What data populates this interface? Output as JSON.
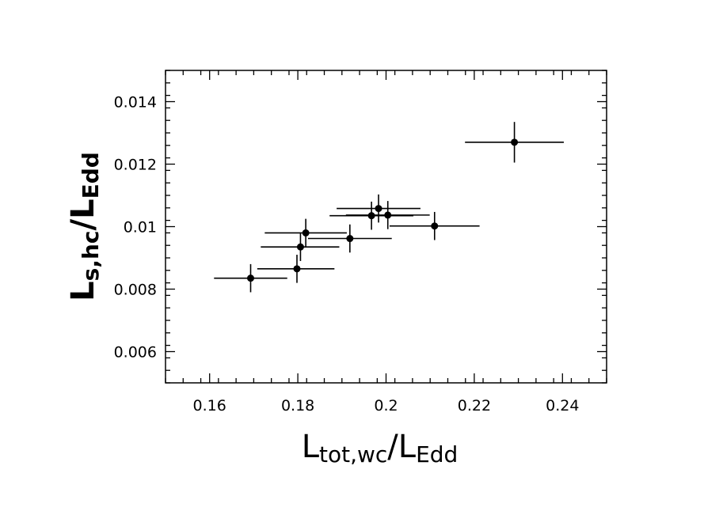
{
  "chart_data": {
    "type": "scatter",
    "error_bars": true,
    "xlabel": {
      "main": "L",
      "sub": "tot,wc",
      "sep": "/",
      "main2": "L",
      "sub2": "Edd"
    },
    "ylabel": {
      "main": "L",
      "sub": "s,hc",
      "sep": "/",
      "main2": "L",
      "sub2": "Edd"
    },
    "xlim": [
      0.15,
      0.25
    ],
    "ylim": [
      0.005,
      0.015
    ],
    "x_ticks": [
      0.16,
      0.18,
      0.2,
      0.22,
      0.24
    ],
    "x_tick_labels": [
      "0.16",
      "0.18",
      "0.2",
      "0.22",
      "0.24"
    ],
    "y_ticks": [
      0.006,
      0.008,
      0.01,
      0.012,
      0.014
    ],
    "y_tick_labels": [
      "0.006",
      "0.008",
      "0.01",
      "0.012",
      "0.014"
    ],
    "grid": false,
    "marker_color": "#000000",
    "points": [
      {
        "x": 0.1693,
        "y": 0.00835,
        "xerr": [
          0.0083,
          0.0083
        ],
        "yerr": [
          0.00045,
          0.00045
        ]
      },
      {
        "x": 0.1798,
        "y": 0.00865,
        "xerr": [
          0.009,
          0.0085
        ],
        "yerr": [
          0.00045,
          0.00045
        ]
      },
      {
        "x": 0.1806,
        "y": 0.00935,
        "xerr": [
          0.009,
          0.0088
        ],
        "yerr": [
          0.00045,
          0.00045
        ]
      },
      {
        "x": 0.1818,
        "y": 0.0098,
        "xerr": [
          0.0093,
          0.0093
        ],
        "yerr": [
          0.00045,
          0.00045
        ]
      },
      {
        "x": 0.1918,
        "y": 0.00962,
        "xerr": [
          0.0095,
          0.0095
        ],
        "yerr": [
          0.00045,
          0.00045
        ]
      },
      {
        "x": 0.1967,
        "y": 0.01035,
        "xerr": [
          0.0095,
          0.0095
        ],
        "yerr": [
          0.00045,
          0.00045
        ]
      },
      {
        "x": 0.1983,
        "y": 0.01058,
        "xerr": [
          0.0095,
          0.0095
        ],
        "yerr": [
          0.00045,
          0.00045
        ]
      },
      {
        "x": 0.2004,
        "y": 0.01037,
        "xerr": [
          0.0095,
          0.0095
        ],
        "yerr": [
          0.00045,
          0.00045
        ]
      },
      {
        "x": 0.211,
        "y": 0.01002,
        "xerr": [
          0.0102,
          0.0102
        ],
        "yerr": [
          0.00045,
          0.00045
        ]
      },
      {
        "x": 0.2291,
        "y": 0.0127,
        "xerr": [
          0.0112,
          0.0112
        ],
        "yerr": [
          0.00065,
          0.00065
        ]
      }
    ]
  }
}
